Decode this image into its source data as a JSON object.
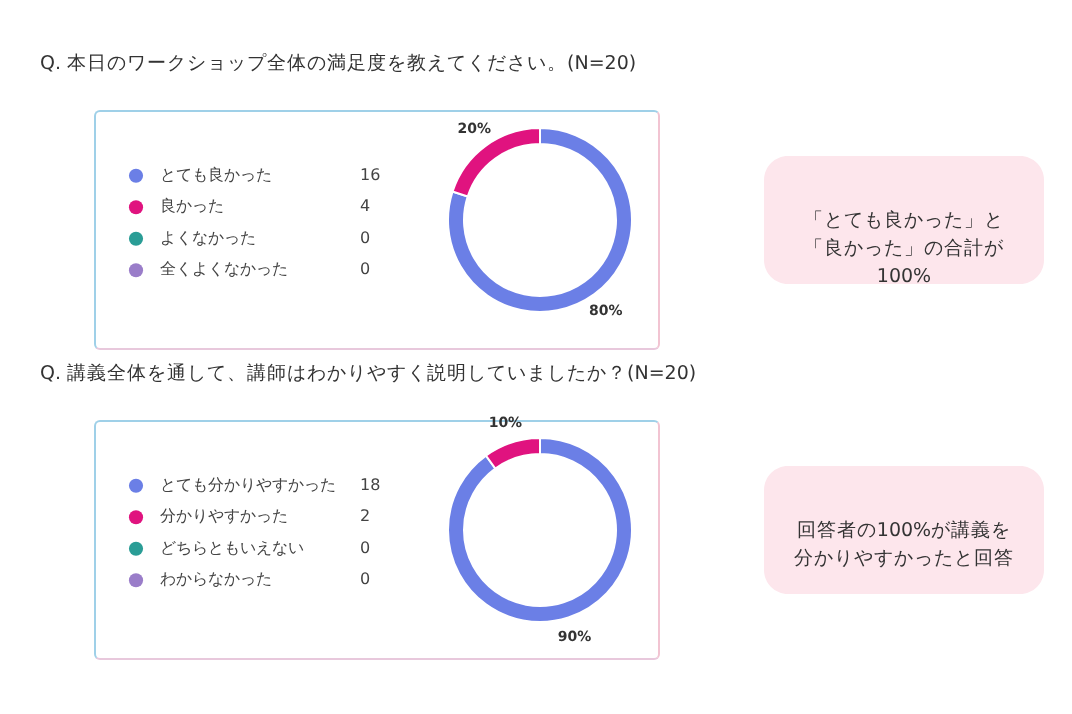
{
  "chart_data": [
    {
      "type": "donut",
      "title": "Q. 本日のワークショップ全体の満足度を教えてください。(N=20)",
      "categories": [
        "とても良かった",
        "良かった",
        "よくなかった",
        "全くよくなかった"
      ],
      "values": [
        80,
        20,
        0,
        0
      ],
      "colors": [
        "#6b7fe6",
        "#e0137f",
        "#2a9d96",
        "#9a7dc9"
      ],
      "value_labels": [
        "80%",
        "20%",
        null,
        null
      ],
      "legend": "left",
      "annotations": [
        {
          "text": "16",
          "x": "とても良かった"
        },
        {
          "text": "4",
          "x": "良かった"
        },
        {
          "text": "0",
          "x": "よくなかった"
        },
        {
          "text": "0",
          "x": "全くよくなかった"
        },
        "「とても良かった」と「良かった」の合計が100%"
      ]
    },
    {
      "type": "donut",
      "title": "Q. 講義全体を通して、講師はわかりやすく説明していましたか？(N=20)",
      "categories": [
        "とても分かりやすかった",
        "分かりやすかった",
        "どちらともいえない",
        "わからなかった"
      ],
      "values": [
        90,
        10,
        0,
        0
      ],
      "colors": [
        "#6b7fe6",
        "#e0137f",
        "#2a9d96",
        "#9a7dc9"
      ],
      "value_labels": [
        "90%",
        "10%",
        null,
        null
      ],
      "legend": "left",
      "annotations": [
        {
          "text": "18",
          "x": "とても分かりやすかった"
        },
        {
          "text": "2",
          "x": "分かりやすかった"
        },
        {
          "text": "0",
          "x": "どちらともいえない"
        },
        {
          "text": "0",
          "x": "わからなかった"
        },
        "回答者の100%が講義を分かりやすかったと回答"
      ]
    }
  ]
}
